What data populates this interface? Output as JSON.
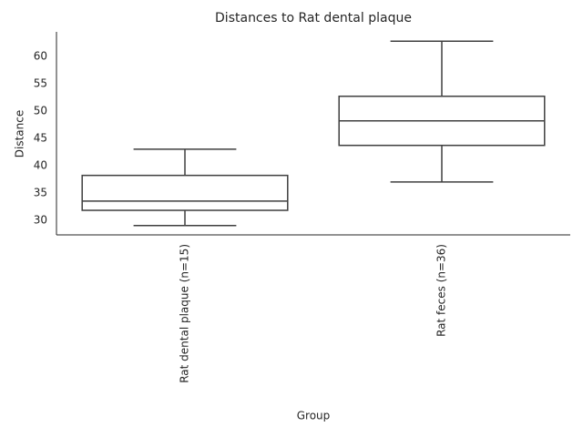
{
  "chart_data": {
    "type": "box",
    "title": "Distances to Rat dental plaque",
    "x_label": "Group",
    "y_label": "Distance",
    "categories": [
      "Rat dental plaque (n=15)",
      "Rat feces (n=36)"
    ],
    "boxes": [
      {
        "whislo": 29.0,
        "q1": 31.8,
        "med": 33.5,
        "q3": 38.2,
        "whishi": 43.0
      },
      {
        "whislo": 37.0,
        "q1": 43.7,
        "med": 48.2,
        "q3": 52.7,
        "whishi": 62.8
      }
    ],
    "color": "#3f3f3f",
    "ylim": [
      27.3,
      64.5
    ],
    "yticks": [
      30,
      35,
      40,
      45,
      50,
      55,
      60
    ]
  }
}
